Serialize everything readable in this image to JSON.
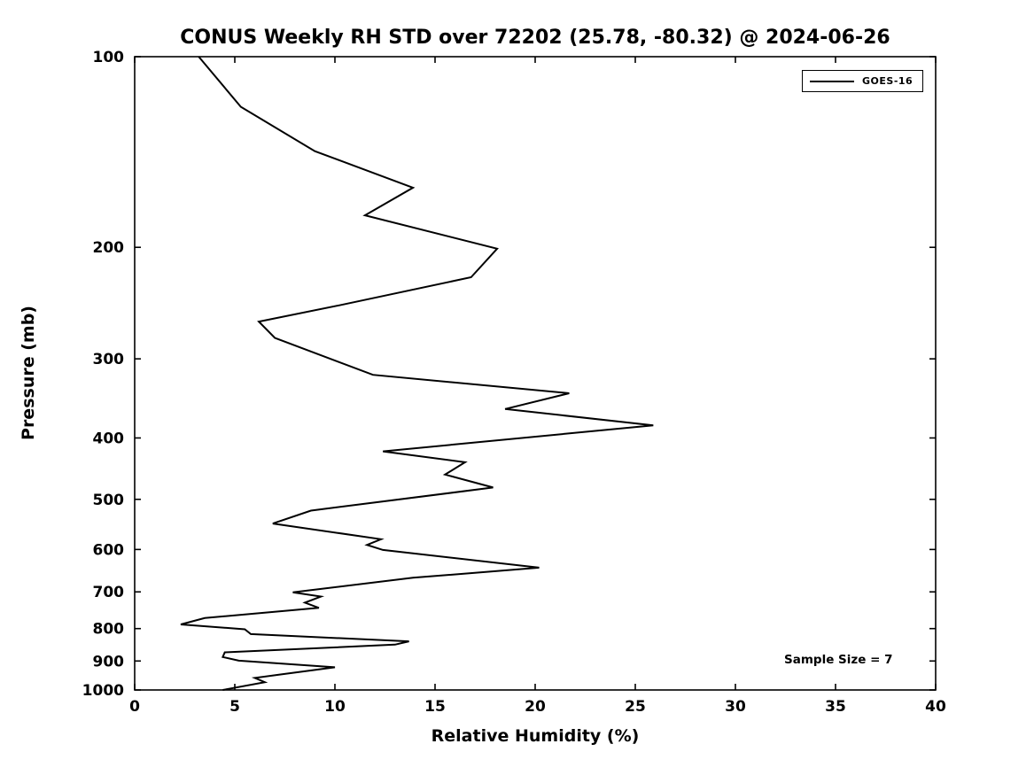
{
  "colors": {
    "background": "#ffffff",
    "axis": "#000000",
    "line": "#000000",
    "text": "#000000"
  },
  "legend": {
    "entries": [
      {
        "label": "GOES-16",
        "color": "#000000"
      }
    ],
    "position": "top-right"
  },
  "chart_data": {
    "type": "line",
    "title": "CONUS Weekly RH STD over 72202 (25.78, -80.32) @ 2024-06-26",
    "xlabel": "Relative Humidity (%)",
    "ylabel": "Pressure (mb)",
    "xlim": [
      0,
      40
    ],
    "ylim": [
      100,
      1000
    ],
    "x_scale": "linear",
    "y_scale": "log",
    "y_inverted": true,
    "grid": false,
    "x_ticks": [
      0,
      5,
      10,
      15,
      20,
      25,
      30,
      35,
      40
    ],
    "y_ticks": [
      100,
      200,
      300,
      400,
      500,
      600,
      700,
      800,
      900,
      1000
    ],
    "annotation": "Sample Size = 7",
    "legend_position": "top-right",
    "series": [
      {
        "name": "GOES-16",
        "color": "#000000",
        "points_format": [
          "pressure_mb",
          "rh_std_percent"
        ],
        "points": [
          [
            100,
            3.2
          ],
          [
            120,
            5.3
          ],
          [
            141,
            9.0
          ],
          [
            161,
            13.9
          ],
          [
            178,
            11.5
          ],
          [
            201,
            18.1
          ],
          [
            223,
            16.8
          ],
          [
            247,
            10.2
          ],
          [
            262,
            6.2
          ],
          [
            278,
            7.0
          ],
          [
            318,
            11.9
          ],
          [
            340,
            21.7
          ],
          [
            360,
            18.5
          ],
          [
            382,
            25.9
          ],
          [
            420,
            12.4
          ],
          [
            437,
            16.5
          ],
          [
            457,
            15.5
          ],
          [
            479,
            17.9
          ],
          [
            521,
            8.8
          ],
          [
            546,
            6.9
          ],
          [
            578,
            12.3
          ],
          [
            590,
            11.6
          ],
          [
            601,
            12.4
          ],
          [
            641,
            20.2
          ],
          [
            665,
            13.9
          ],
          [
            701,
            7.9
          ],
          [
            712,
            9.3
          ],
          [
            728,
            8.5
          ],
          [
            742,
            9.2
          ],
          [
            770,
            3.5
          ],
          [
            788,
            2.3
          ],
          [
            802,
            5.5
          ],
          [
            816,
            5.8
          ],
          [
            838,
            13.7
          ],
          [
            848,
            13.0
          ],
          [
            872,
            4.5
          ],
          [
            887,
            4.4
          ],
          [
            899,
            5.2
          ],
          [
            921,
            10.0
          ],
          [
            946,
            7.2
          ],
          [
            957,
            6.0
          ],
          [
            972,
            6.5
          ],
          [
            1000,
            4.4
          ]
        ]
      }
    ]
  }
}
